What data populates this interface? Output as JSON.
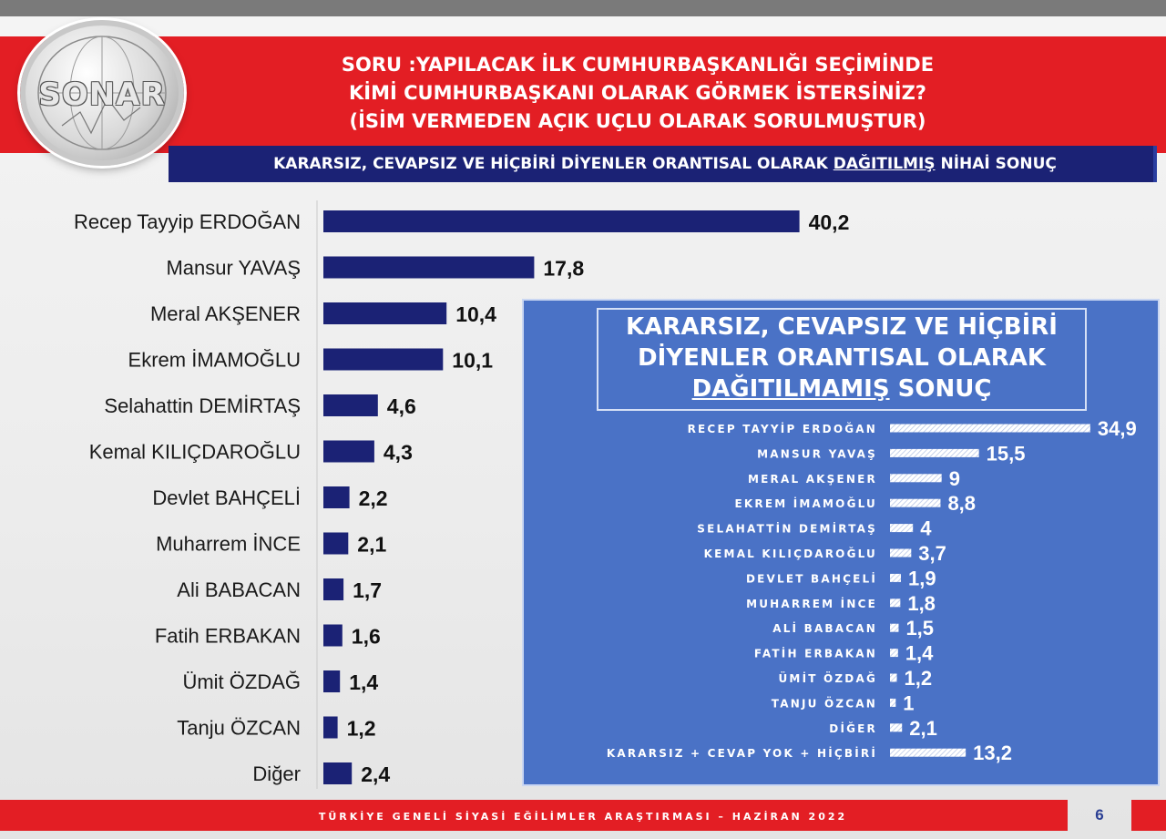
{
  "logo": {
    "text": "SONAR"
  },
  "header": {
    "question_lines": [
      "SORU :YAPILACAK İLK CUMHURBAŞKANLIĞI SEÇİMİNDE",
      "KİMİ CUMHURBAŞKANI OLARAK GÖRMEK İSTERSİNİZ?",
      "(İSİM VERMEDEN AÇIK UÇLU OLARAK SORULMUŞTUR)"
    ],
    "subtitle_before": "KARARSIZ, CEVAPSIZ VE HİÇBİRİ DİYENLER ORANTISAL OLARAK ",
    "subtitle_underlined": "DAĞITILMIŞ",
    "subtitle_after": " NİHAİ SONUÇ"
  },
  "inset": {
    "title_line1": "KARARSIZ, CEVAPSIZ VE HİÇBİRİ",
    "title_line2": "DİYENLER ORANTISAL OLARAK",
    "title_underlined": "DAĞITILMAMIŞ",
    "title_after": " SONUÇ"
  },
  "footer": {
    "text": "TÜRKİYE GENELİ SİYASİ EĞİLİMLER ARAŞTIRMASI – HAZİRAN 2022",
    "page_number": "6"
  },
  "colors": {
    "red": "#e31e24",
    "navy": "#1b2275",
    "inset_blue": "#4a72c6"
  },
  "chart_data": [
    {
      "type": "bar",
      "orientation": "horizontal",
      "categories": [
        "Recep Tayyip ERDOĞAN",
        "Mansur YAVAŞ",
        "Meral AKŞENER",
        "Ekrem İMAMOĞLU",
        "Selahattin DEMİRTAŞ",
        "Kemal KILIÇDAROĞLU",
        "Devlet BAHÇELİ",
        "Muharrem İNCE",
        "Ali BABACAN",
        "Fatih ERBAKAN",
        "Ümit ÖZDAĞ",
        "Tanju ÖZCAN",
        "Diğer"
      ],
      "values": [
        40.2,
        17.8,
        10.4,
        10.1,
        4.6,
        4.3,
        2.2,
        2.1,
        1.7,
        1.6,
        1.4,
        1.2,
        2.4
      ],
      "value_labels": [
        "40,2",
        "17,8",
        "10,4",
        "10,1",
        "4,6",
        "4,3",
        "2,2",
        "2,1",
        "1,7",
        "1,6",
        "1,4",
        "1,2",
        "2,4"
      ],
      "bar_color": "#1b2275",
      "grid": false
    },
    {
      "type": "bar",
      "orientation": "horizontal",
      "categories": [
        "RECEP TAYYİP ERDOĞAN",
        "MANSUR YAVAŞ",
        "MERAL AKŞENER",
        "EKREM İMAMOĞLU",
        "SELAHATTİN DEMİRTAŞ",
        "KEMAL KILIÇDAROĞLU",
        "DEVLET BAHÇELİ",
        "MUHARREM İNCE",
        "ALİ BABACAN",
        "FATİH ERBAKAN",
        "ÜMİT ÖZDAĞ",
        "TANJU ÖZCAN",
        "DİĞER",
        "KARARSIZ + CEVAP YOK + HİÇBİRİ"
      ],
      "values": [
        34.9,
        15.5,
        9,
        8.8,
        4,
        3.7,
        1.9,
        1.8,
        1.5,
        1.4,
        1.2,
        1,
        2.1,
        13.2
      ],
      "value_labels": [
        "34,9",
        "15,5",
        "9",
        "8,8",
        "4",
        "3,7",
        "1,9",
        "1,8",
        "1,5",
        "1,4",
        "1,2",
        "1",
        "2,1",
        "13,2"
      ],
      "bar_color": "#ffffff",
      "grid": false
    }
  ]
}
